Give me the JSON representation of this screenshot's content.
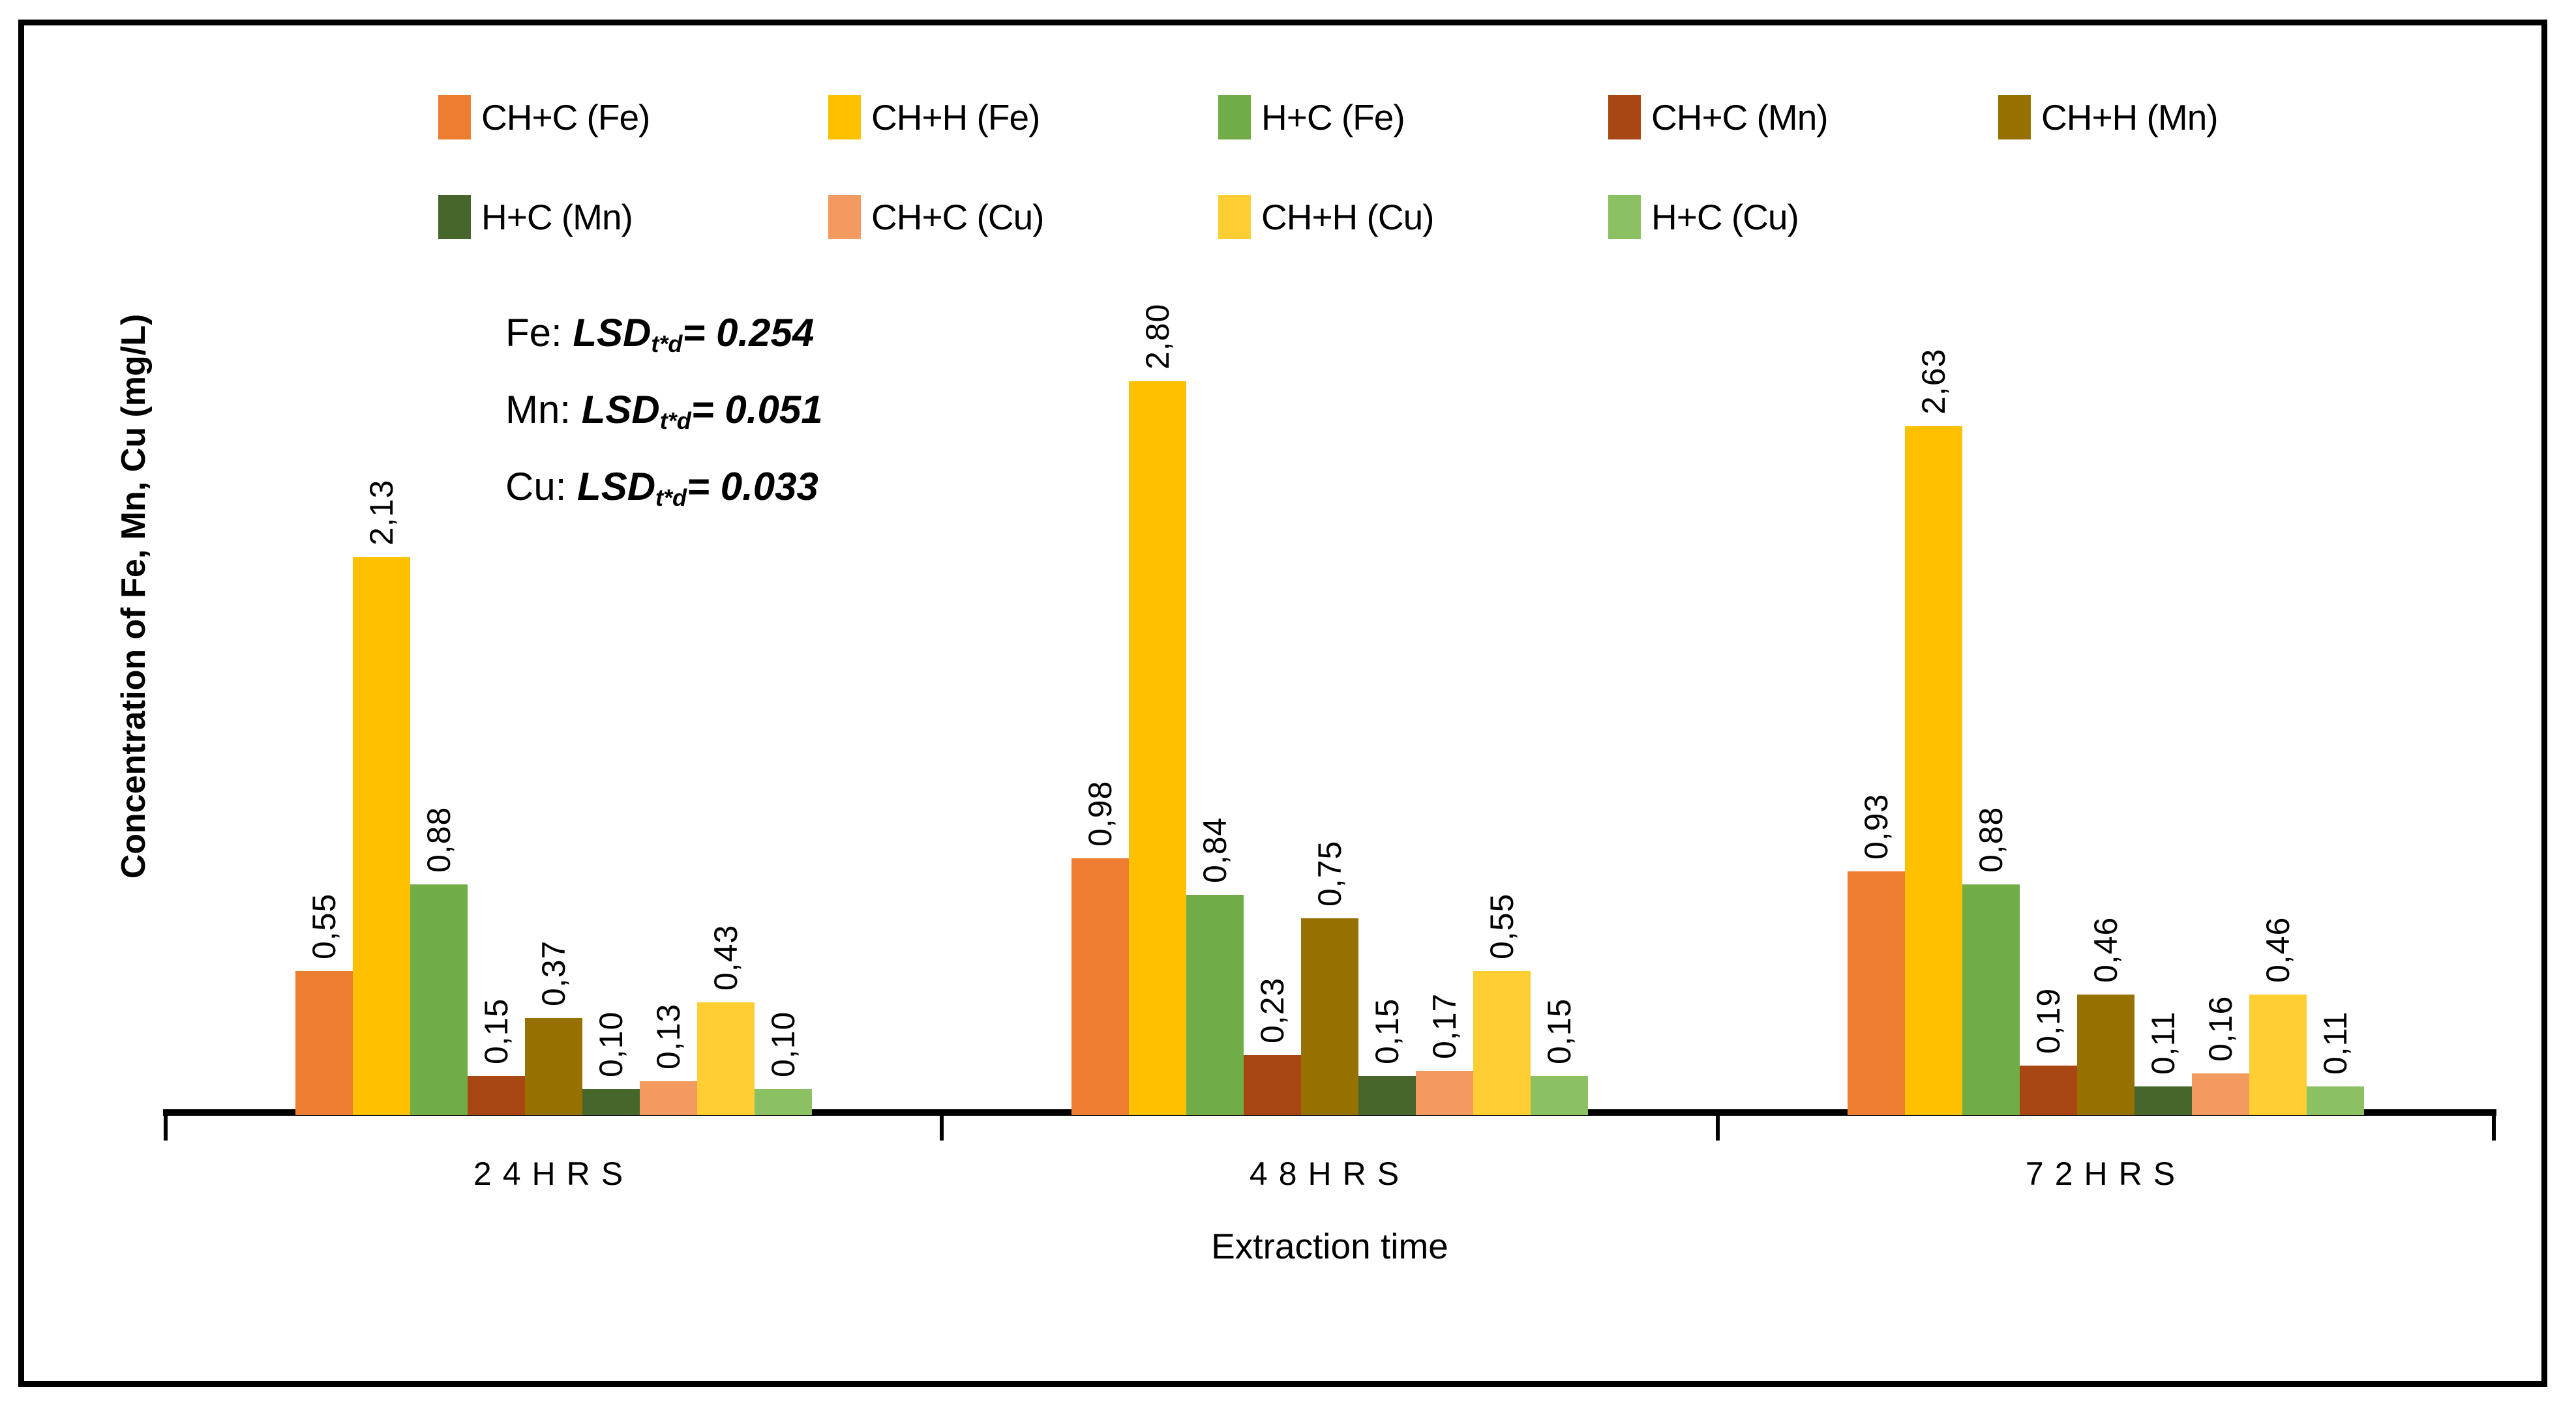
{
  "chart_data": {
    "type": "bar",
    "title": "",
    "xlabel": "Extraction time",
    "ylabel": "Concentration of Fe, Mn, Cu (mg/L)",
    "categories": [
      "24HRS",
      "48HRS",
      "72HRS"
    ],
    "ylim": [
      0,
      3
    ],
    "grid": false,
    "legend_position": "top",
    "legend_rows": [
      5,
      4
    ],
    "decimal_separator": ",",
    "series": [
      {
        "name": "CH+C (Fe)",
        "color": "#ED7D31",
        "values": [
          0.55,
          0.98,
          0.93
        ],
        "labels": [
          "0,55",
          "0,98",
          "0,93"
        ]
      },
      {
        "name": "CH+H (Fe)",
        "color": "#FFC000",
        "values": [
          2.13,
          2.8,
          2.63
        ],
        "labels": [
          "2,13",
          "2,80",
          "2,63"
        ]
      },
      {
        "name": "H+C (Fe)",
        "color": "#70AD47",
        "values": [
          0.88,
          0.84,
          0.88
        ],
        "labels": [
          "0,88",
          "0,84",
          "0,88"
        ]
      },
      {
        "name": "CH+C (Mn)",
        "color": "#A84713",
        "values": [
          0.15,
          0.23,
          0.19
        ],
        "labels": [
          "0,15",
          "0,23",
          "0,19"
        ]
      },
      {
        "name": "CH+H (Mn)",
        "color": "#977100",
        "values": [
          0.37,
          0.75,
          0.46
        ],
        "labels": [
          "0,37",
          "0,75",
          "0,46"
        ]
      },
      {
        "name": "H+C (Mn)",
        "color": "#46662B",
        "values": [
          0.1,
          0.15,
          0.11
        ],
        "labels": [
          "0,10",
          "0,15",
          "0,11"
        ]
      },
      {
        "name": "CH+C (Cu)",
        "color": "#F29A5F",
        "values": [
          0.13,
          0.17,
          0.16
        ],
        "labels": [
          "0,13",
          "0,17",
          "0,16"
        ]
      },
      {
        "name": "CH+H (Cu)",
        "color": "#FFCE33",
        "values": [
          0.43,
          0.55,
          0.46
        ],
        "labels": [
          "0,43",
          "0,55",
          "0,46"
        ]
      },
      {
        "name": "H+C (Cu)",
        "color": "#8BC162",
        "values": [
          0.1,
          0.15,
          0.11
        ],
        "labels": [
          "0,10",
          "0,15",
          "0,11"
        ]
      }
    ],
    "annotations": [
      {
        "element": "Fe:",
        "stat": "LSD",
        "sub": "t*d",
        "value": "= 0.254"
      },
      {
        "element": "Mn:",
        "stat": "LSD",
        "sub": "t*d",
        "value": "= 0.051"
      },
      {
        "element": "Cu:",
        "stat": "LSD",
        "sub": "t*d",
        "value": "= 0.033"
      }
    ]
  }
}
